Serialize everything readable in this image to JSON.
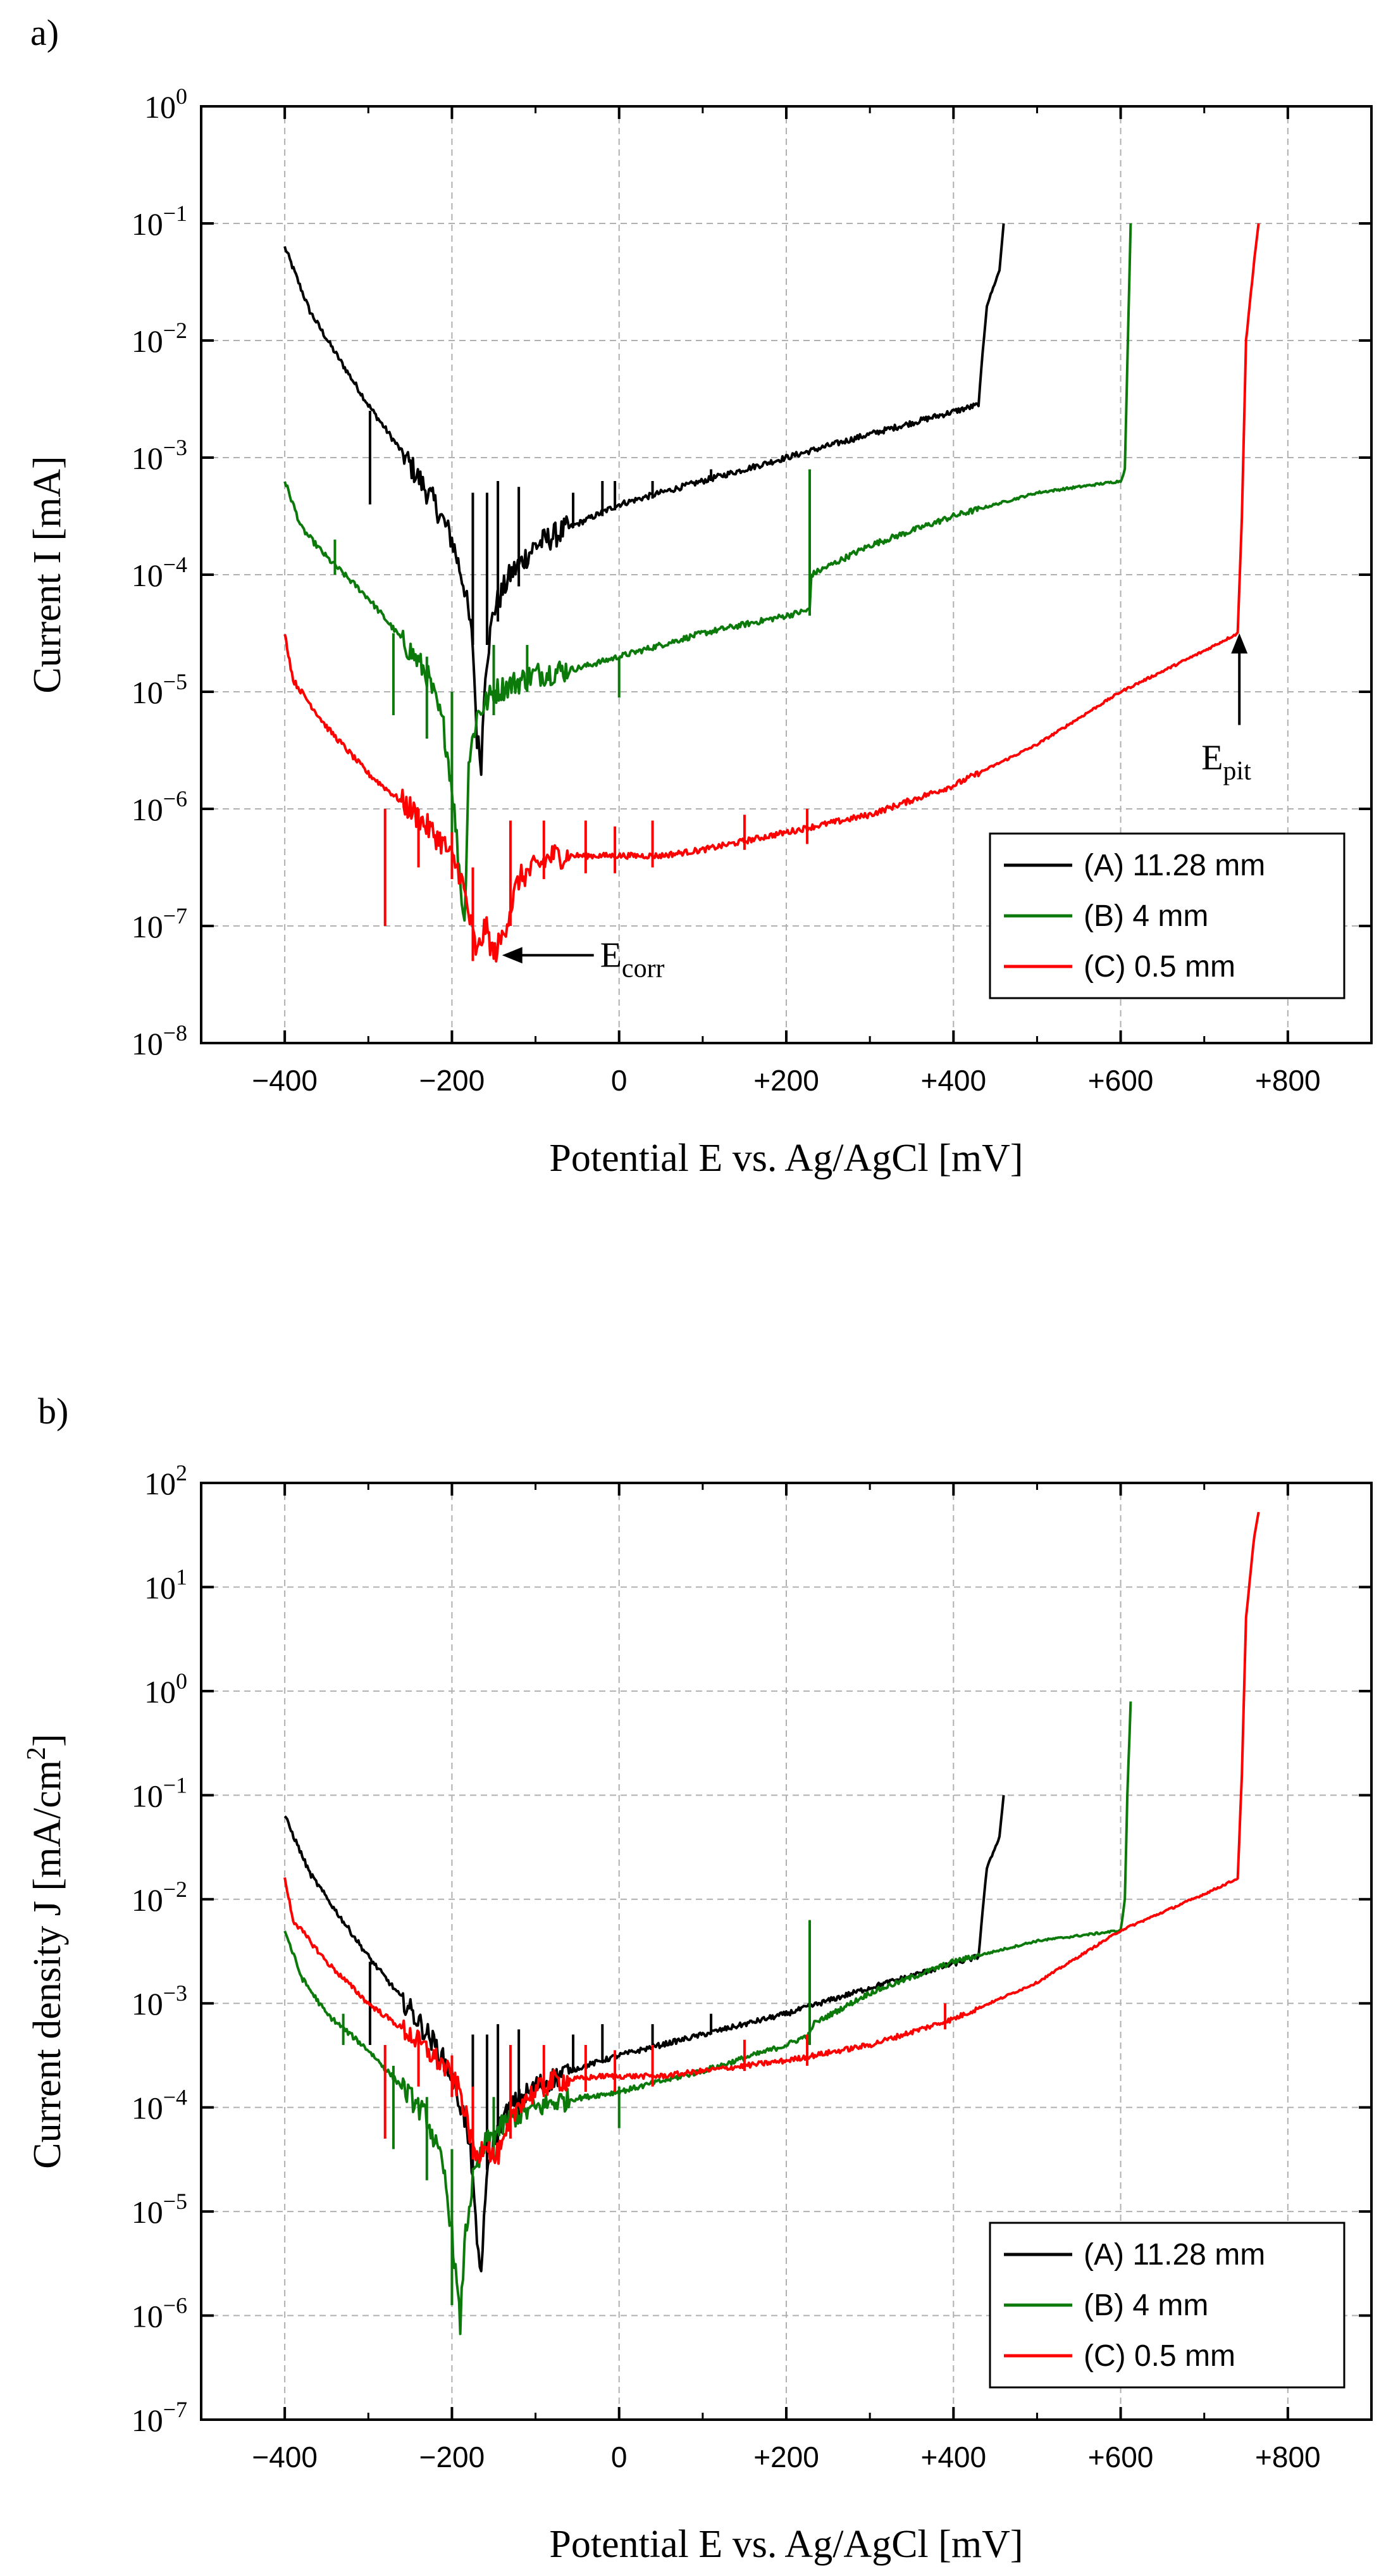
{
  "chart_data": [
    {
      "panel": "a)",
      "type": "line",
      "title": "",
      "xlabel": "Potential E vs. Ag/AgCl [mV]",
      "ylabel": "Current I [mA]",
      "xlim": [
        -500,
        900
      ],
      "ylim_log10": [
        -8,
        0
      ],
      "y_scale": "log",
      "xticks": [
        -400,
        -200,
        0,
        200,
        400,
        600,
        800
      ],
      "xtick_labels": [
        "−400",
        "−200",
        "0",
        "+200",
        "+400",
        "+600",
        "+800"
      ],
      "yticks_exp": [
        -8,
        -7,
        -6,
        -5,
        -4,
        -3,
        -2,
        -1,
        0
      ],
      "grid": true,
      "legend_position": "bottom-right",
      "series": [
        {
          "name": "(A) 11.28 mm",
          "color": "#000000",
          "points": [
            [
              -400,
              -1.2
            ],
            [
              -370,
              -1.75
            ],
            [
              -340,
              -2.1
            ],
            [
              -300,
              -2.55
            ],
            [
              -260,
              -2.95
            ],
            [
              -220,
              -3.4
            ],
            [
              -200,
              -3.7
            ],
            [
              -185,
              -4.1
            ],
            [
              -175,
              -4.6
            ],
            [
              -170,
              -5.4
            ],
            [
              -165,
              -5.6
            ],
            [
              -160,
              -4.8
            ],
            [
              -150,
              -4.3
            ],
            [
              -130,
              -4.0
            ],
            [
              -100,
              -3.75
            ],
            [
              -60,
              -3.6
            ],
            [
              0,
              -3.4
            ],
            [
              50,
              -3.3
            ],
            [
              100,
              -3.2
            ],
            [
              150,
              -3.1
            ],
            [
              200,
              -3.0
            ],
            [
              300,
              -2.8
            ],
            [
              430,
              -2.55
            ],
            [
              435,
              -2.1
            ],
            [
              440,
              -1.7
            ],
            [
              455,
              -1.4
            ],
            [
              460,
              -1.0
            ]
          ],
          "spikes": [
            [
              -298,
              -3.4,
              -2.6
            ],
            [
              -175,
              -4.6,
              -3.3
            ],
            [
              -158,
              -4.6,
              -3.3
            ],
            [
              -145,
              -4.4,
              -3.2
            ],
            [
              -120,
              -4.1,
              -3.25
            ],
            [
              -55,
              -3.6,
              -3.3
            ],
            [
              -20,
              -3.5,
              -3.2
            ],
            [
              -5,
              -3.45,
              -3.2
            ],
            [
              40,
              -3.35,
              -3.2
            ],
            [
              110,
              -3.2,
              -3.1
            ]
          ]
        },
        {
          "name": "(B) 4 mm",
          "color": "#0b7a0b",
          "points": [
            [
              -400,
              -3.2
            ],
            [
              -380,
              -3.6
            ],
            [
              -350,
              -3.85
            ],
            [
              -300,
              -4.2
            ],
            [
              -260,
              -4.55
            ],
            [
              -230,
              -4.85
            ],
            [
              -210,
              -5.3
            ],
            [
              -200,
              -5.8
            ],
            [
              -190,
              -6.6
            ],
            [
              -185,
              -7.0
            ],
            [
              -180,
              -5.6
            ],
            [
              -170,
              -5.2
            ],
            [
              -150,
              -5.0
            ],
            [
              -100,
              -4.85
            ],
            [
              -50,
              -4.8
            ],
            [
              0,
              -4.7
            ],
            [
              100,
              -4.5
            ],
            [
              200,
              -4.35
            ],
            [
              228,
              -4.3
            ],
            [
              230,
              -4.0
            ],
            [
              300,
              -3.75
            ],
            [
              400,
              -3.5
            ],
            [
              500,
              -3.3
            ],
            [
              600,
              -3.2
            ],
            [
              605,
              -3.1
            ],
            [
              608,
              -2.2
            ],
            [
              612,
              -1.0
            ]
          ],
          "spikes": [
            [
              -340,
              -4.0,
              -3.7
            ],
            [
              -270,
              -5.2,
              -4.5
            ],
            [
              -230,
              -5.4,
              -4.7
            ],
            [
              -200,
              -6.3,
              -5.0
            ],
            [
              -150,
              -5.2,
              -4.6
            ],
            [
              -110,
              -5.0,
              -4.6
            ],
            [
              0,
              -5.05,
              -4.7
            ],
            [
              228,
              -4.35,
              -3.1
            ]
          ]
        },
        {
          "name": "(C) 0.5 mm",
          "color": "#ff0000",
          "points": [
            [
              -400,
              -4.5
            ],
            [
              -390,
              -4.9
            ],
            [
              -350,
              -5.3
            ],
            [
              -300,
              -5.7
            ],
            [
              -250,
              -6.0
            ],
            [
              -210,
              -6.3
            ],
            [
              -190,
              -6.55
            ],
            [
              -180,
              -6.9
            ],
            [
              -170,
              -7.25
            ],
            [
              -160,
              -7.0
            ],
            [
              -150,
              -7.25
            ],
            [
              -140,
              -7.1
            ],
            [
              -120,
              -6.6
            ],
            [
              -80,
              -6.4
            ],
            [
              -20,
              -6.4
            ],
            [
              50,
              -6.4
            ],
            [
              100,
              -6.35
            ],
            [
              200,
              -6.2
            ],
            [
              300,
              -6.05
            ],
            [
              400,
              -5.8
            ],
            [
              500,
              -5.45
            ],
            [
              600,
              -5.0
            ],
            [
              700,
              -4.65
            ],
            [
              740,
              -4.5
            ],
            [
              745,
              -3.5
            ],
            [
              750,
              -2.0
            ],
            [
              760,
              -1.3
            ],
            [
              765,
              -1.0
            ]
          ],
          "spikes": [
            [
              -280,
              -7.0,
              -6.0
            ],
            [
              -240,
              -6.5,
              -6.0
            ],
            [
              -200,
              -6.6,
              -6.2
            ],
            [
              -175,
              -7.3,
              -6.5
            ],
            [
              -130,
              -7.0,
              -6.1
            ],
            [
              -90,
              -6.6,
              -6.1
            ],
            [
              -40,
              -6.55,
              -6.1
            ],
            [
              -5,
              -6.55,
              -6.15
            ],
            [
              40,
              -6.5,
              -6.1
            ],
            [
              150,
              -6.35,
              -6.05
            ],
            [
              225,
              -6.3,
              -6.0
            ]
          ]
        }
      ],
      "legend": [
        "(A) 11.28 mm",
        "(B) 4 mm",
        "(C) 0.5 mm"
      ],
      "annotations": [
        {
          "main": "E",
          "sub": "corr",
          "arrow_tip": [
            -140,
            -7.25
          ],
          "direction": "left"
        },
        {
          "main": "E",
          "sub": "pit",
          "arrow_tip": [
            742,
            -4.5
          ],
          "direction": "up"
        }
      ]
    },
    {
      "panel": "b)",
      "type": "line",
      "title": "",
      "xlabel": "Potential E vs. Ag/AgCl [mV]",
      "ylabel": "Current density J [mA/cm²]",
      "xlim": [
        -500,
        900
      ],
      "ylim_log10": [
        -7,
        2
      ],
      "y_scale": "log",
      "xticks": [
        -400,
        -200,
        0,
        200,
        400,
        600,
        800
      ],
      "xtick_labels": [
        "−400",
        "−200",
        "0",
        "+200",
        "+400",
        "+600",
        "+800"
      ],
      "yticks_exp": [
        -7,
        -6,
        -5,
        -4,
        -3,
        -2,
        -1,
        0,
        1,
        2
      ],
      "grid": true,
      "legend_position": "bottom-right",
      "series": [
        {
          "name": "(A) 11.28 mm",
          "color": "#000000",
          "points": [
            [
              -400,
              -1.2
            ],
            [
              -370,
              -1.75
            ],
            [
              -340,
              -2.1
            ],
            [
              -300,
              -2.55
            ],
            [
              -260,
              -2.95
            ],
            [
              -220,
              -3.4
            ],
            [
              -200,
              -3.7
            ],
            [
              -185,
              -4.1
            ],
            [
              -175,
              -4.6
            ],
            [
              -170,
              -5.4
            ],
            [
              -165,
              -5.6
            ],
            [
              -160,
              -4.8
            ],
            [
              -150,
              -4.3
            ],
            [
              -130,
              -4.0
            ],
            [
              -100,
              -3.8
            ],
            [
              -60,
              -3.65
            ],
            [
              0,
              -3.5
            ],
            [
              50,
              -3.4
            ],
            [
              100,
              -3.3
            ],
            [
              200,
              -3.1
            ],
            [
              300,
              -2.85
            ],
            [
              430,
              -2.55
            ],
            [
              435,
              -2.1
            ],
            [
              440,
              -1.7
            ],
            [
              455,
              -1.4
            ],
            [
              460,
              -1.0
            ]
          ],
          "spikes": [
            [
              -298,
              -3.4,
              -2.6
            ],
            [
              -175,
              -4.6,
              -3.3
            ],
            [
              -158,
              -4.6,
              -3.3
            ],
            [
              -145,
              -4.4,
              -3.2
            ],
            [
              -120,
              -4.1,
              -3.25
            ],
            [
              -55,
              -3.65,
              -3.3
            ],
            [
              -20,
              -3.55,
              -3.2
            ],
            [
              40,
              -3.45,
              -3.2
            ],
            [
              110,
              -3.3,
              -3.1
            ]
          ]
        },
        {
          "name": "(B) 4 mm",
          "color": "#0b7a0b",
          "points": [
            [
              -400,
              -2.3
            ],
            [
              -380,
              -2.75
            ],
            [
              -350,
              -3.1
            ],
            [
              -300,
              -3.45
            ],
            [
              -260,
              -3.8
            ],
            [
              -230,
              -4.1
            ],
            [
              -210,
              -4.6
            ],
            [
              -200,
              -5.2
            ],
            [
              -190,
              -6.1
            ],
            [
              -185,
              -5.3
            ],
            [
              -175,
              -4.7
            ],
            [
              -160,
              -4.35
            ],
            [
              -130,
              -4.1
            ],
            [
              -80,
              -3.95
            ],
            [
              0,
              -3.85
            ],
            [
              100,
              -3.65
            ],
            [
              200,
              -3.4
            ],
            [
              228,
              -3.3
            ],
            [
              232,
              -3.2
            ],
            [
              300,
              -2.9
            ],
            [
              400,
              -2.6
            ],
            [
              500,
              -2.4
            ],
            [
              600,
              -2.3
            ],
            [
              605,
              -2.0
            ],
            [
              608,
              -1.0
            ],
            [
              612,
              -0.1
            ]
          ],
          "spikes": [
            [
              -330,
              -3.4,
              -3.1
            ],
            [
              -270,
              -4.4,
              -3.6
            ],
            [
              -230,
              -4.7,
              -3.9
            ],
            [
              -200,
              -5.9,
              -4.4
            ],
            [
              -150,
              -4.5,
              -3.9
            ],
            [
              0,
              -4.2,
              -3.8
            ],
            [
              228,
              -3.4,
              -2.2
            ]
          ]
        },
        {
          "name": "(C) 0.5 mm",
          "color": "#ff0000",
          "points": [
            [
              -400,
              -1.8
            ],
            [
              -390,
              -2.2
            ],
            [
              -350,
              -2.6
            ],
            [
              -300,
              -3.0
            ],
            [
              -250,
              -3.3
            ],
            [
              -210,
              -3.6
            ],
            [
              -190,
              -3.85
            ],
            [
              -180,
              -4.2
            ],
            [
              -170,
              -4.5
            ],
            [
              -160,
              -4.3
            ],
            [
              -150,
              -4.5
            ],
            [
              -140,
              -4.4
            ],
            [
              -120,
              -3.95
            ],
            [
              -80,
              -3.75
            ],
            [
              -20,
              -3.7
            ],
            [
              50,
              -3.7
            ],
            [
              100,
              -3.65
            ],
            [
              200,
              -3.55
            ],
            [
              300,
              -3.4
            ],
            [
              400,
              -3.15
            ],
            [
              500,
              -2.8
            ],
            [
              600,
              -2.3
            ],
            [
              700,
              -1.95
            ],
            [
              740,
              -1.8
            ],
            [
              745,
              -0.8
            ],
            [
              750,
              0.7
            ],
            [
              760,
              1.5
            ],
            [
              765,
              1.72
            ]
          ],
          "spikes": [
            [
              -280,
              -4.3,
              -3.4
            ],
            [
              -240,
              -3.8,
              -3.3
            ],
            [
              -200,
              -3.9,
              -3.5
            ],
            [
              -175,
              -4.5,
              -3.8
            ],
            [
              -130,
              -4.3,
              -3.4
            ],
            [
              -90,
              -3.9,
              -3.4
            ],
            [
              -40,
              -3.85,
              -3.4
            ],
            [
              -5,
              -3.85,
              -3.45
            ],
            [
              40,
              -3.8,
              -3.4
            ],
            [
              150,
              -3.65,
              -3.35
            ],
            [
              225,
              -3.6,
              -3.3
            ],
            [
              390,
              -3.25,
              -3.0
            ]
          ]
        }
      ],
      "legend": [
        "(A) 11.28 mm",
        "(B) 4 mm",
        "(C) 0.5 mm"
      ]
    }
  ]
}
